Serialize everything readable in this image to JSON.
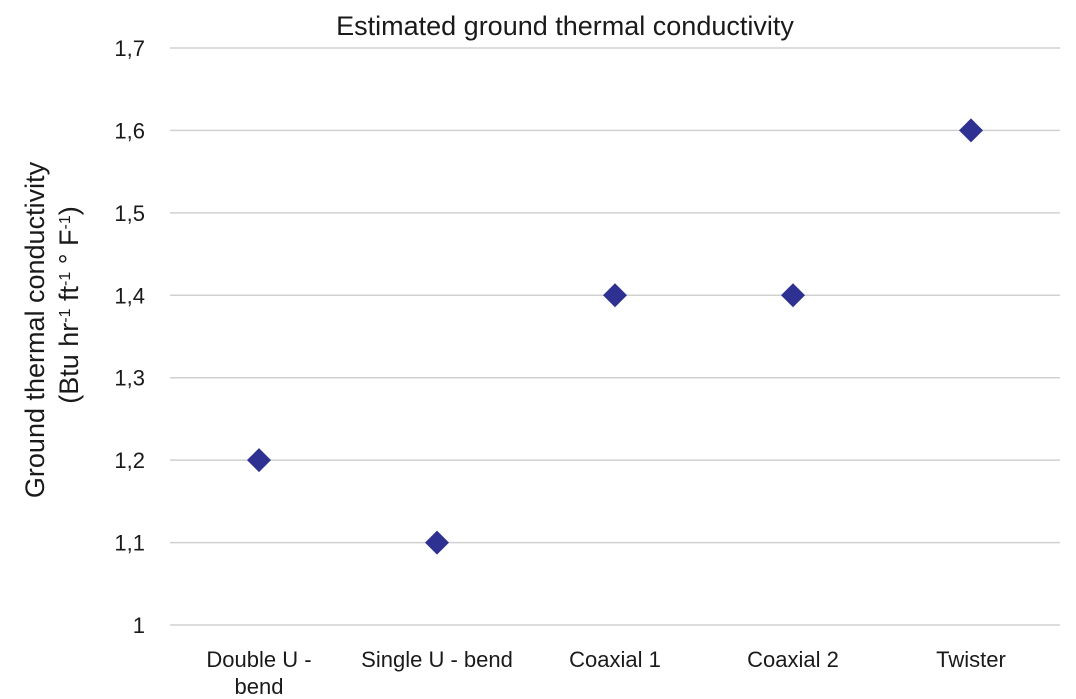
{
  "chart_data": {
    "type": "scatter",
    "title": "Estimated ground thermal conductivity",
    "ylabel": {
      "line1": "Ground thermal conductivity",
      "line2_parts": [
        "(Btu hr",
        "-1",
        " ft",
        "-1",
        " ° F",
        "-1",
        ")"
      ]
    },
    "categories": [
      "Double U - bend",
      "Single U - bend",
      "Coaxial 1",
      "Coaxial 2",
      "Twister"
    ],
    "values": [
      1.2,
      1.1,
      1.4,
      1.4,
      1.6
    ],
    "ylim": [
      1.0,
      1.7
    ],
    "yticks": [
      "1",
      "1,1",
      "1,2",
      "1,3",
      "1,4",
      "1,5",
      "1,6",
      "1,7"
    ],
    "grid": true,
    "marker": "diamond",
    "marker_color": "#2E3192",
    "grid_color": "#D0D0D0"
  }
}
